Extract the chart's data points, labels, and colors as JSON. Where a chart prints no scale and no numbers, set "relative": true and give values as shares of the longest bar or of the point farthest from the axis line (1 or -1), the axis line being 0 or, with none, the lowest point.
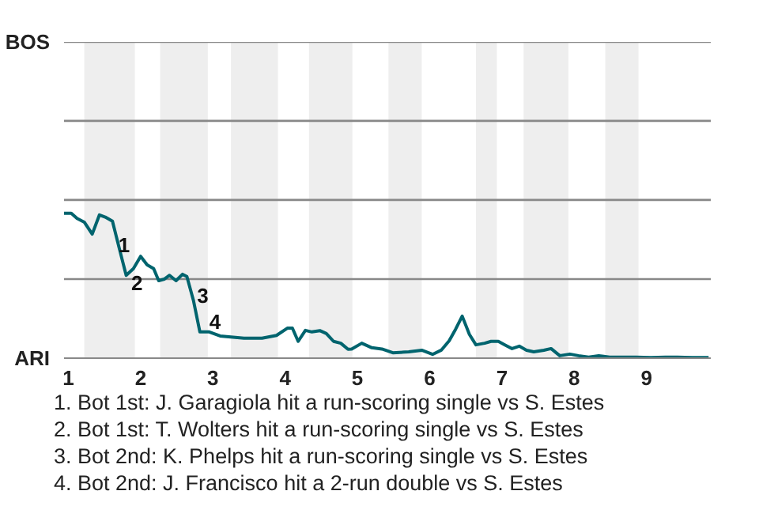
{
  "chart_data": {
    "type": "line",
    "relative": true,
    "xlim": [
      0.94,
      9.89
    ],
    "xticks": [
      1,
      2,
      3,
      4,
      5,
      6,
      7,
      8,
      9
    ],
    "marker": "none",
    "line_style": "solid",
    "ref_lines": [
      {
        "axis": "y",
        "value": 0.546,
        "color": "#888888"
      },
      {
        "axis": "y",
        "value": 1.092,
        "color": "#888888"
      },
      {
        "axis": "y",
        "value": 1.638,
        "color": "#888888"
      },
      {
        "axis": "y",
        "value": 2.183,
        "color": "#888888"
      }
    ],
    "bands": [
      {
        "axis": "x",
        "from": 1.22,
        "to": 1.92,
        "color": "#eeeeee"
      },
      {
        "axis": "x",
        "from": 2.27,
        "to": 2.93,
        "color": "#eeeeee"
      },
      {
        "axis": "x",
        "from": 3.25,
        "to": 3.9,
        "color": "#eeeeee"
      },
      {
        "axis": "x",
        "from": 4.33,
        "to": 4.93,
        "color": "#eeeeee"
      },
      {
        "axis": "x",
        "from": 5.43,
        "to": 5.89,
        "color": "#eeeeee"
      },
      {
        "axis": "x",
        "from": 6.64,
        "to": 6.93,
        "color": "#eeeeee"
      },
      {
        "axis": "x",
        "from": 7.3,
        "to": 7.92,
        "color": "#eeeeee"
      },
      {
        "axis": "x",
        "from": 8.43,
        "to": 8.89,
        "color": "#eeeeee"
      }
    ],
    "series": [
      {
        "color": "#00646e",
        "x": [
          0.94,
          1.04,
          1.12,
          1.22,
          1.33,
          1.43,
          1.51,
          1.61,
          1.71,
          1.8,
          1.9,
          2,
          2.09,
          2.18,
          2.25,
          2.33,
          2.4,
          2.49,
          2.58,
          2.64,
          2.73,
          2.82,
          2.95,
          3.1,
          3.25,
          3.43,
          3.68,
          3.88,
          4.03,
          4.1,
          4.18,
          4.28,
          4.37,
          4.48,
          4.57,
          4.67,
          4.77,
          4.87,
          4.92,
          5.06,
          5.2,
          5.34,
          5.49,
          5.71,
          5.89,
          6.04,
          6.16,
          6.27,
          6.36,
          6.45,
          6.55,
          6.64,
          6.76,
          6.85,
          6.95,
          7.04,
          7.14,
          7.24,
          7.34,
          7.44,
          7.58,
          7.68,
          7.8,
          7.94,
          8.06,
          8.2,
          8.34,
          8.49,
          8.86,
          9.06,
          9.26,
          9.43,
          9.63,
          9.86
        ],
        "values": [
          1,
          1,
          0.965,
          0.939,
          0.856,
          0.989,
          0.974,
          0.945,
          0.747,
          0.572,
          0.618,
          0.703,
          0.644,
          0.618,
          0.535,
          0.546,
          0.572,
          0.535,
          0.579,
          0.563,
          0.4,
          0.181,
          0.181,
          0.153,
          0.146,
          0.138,
          0.138,
          0.157,
          0.207,
          0.207,
          0.116,
          0.192,
          0.181,
          0.19,
          0.17,
          0.116,
          0.103,
          0.061,
          0.063,
          0.103,
          0.072,
          0.063,
          0.037,
          0.044,
          0.055,
          0.026,
          0.055,
          0.12,
          0.201,
          0.29,
          0.164,
          0.092,
          0.103,
          0.116,
          0.116,
          0.092,
          0.066,
          0.083,
          0.055,
          0.044,
          0.055,
          0.066,
          0.017,
          0.028,
          0.017,
          0.007,
          0.017,
          0.007,
          0.007,
          0.004,
          0.007,
          0.007,
          0.004,
          0.004
        ]
      }
    ],
    "annotations": [
      "BOS",
      "ARI",
      {
        "text": "1",
        "x": 1.77,
        "y": 0.78
      },
      {
        "text": "2",
        "x": 1.95,
        "y": 0.52
      },
      {
        "text": "3",
        "x": 2.86,
        "y": 0.43
      },
      {
        "text": "4",
        "x": 3.03,
        "y": 0.25
      },
      "1. Bot 1st: J. Garagiola hit a run-scoring single vs S. Estes",
      "2. Bot 1st: T. Wolters hit a run-scoring single vs S. Estes",
      "3. Bot 2nd: K. Phelps hit a run-scoring single vs S. Estes",
      "4. Bot 2nd: J. Francisco hit a 2-run double vs S. Estes"
    ]
  }
}
